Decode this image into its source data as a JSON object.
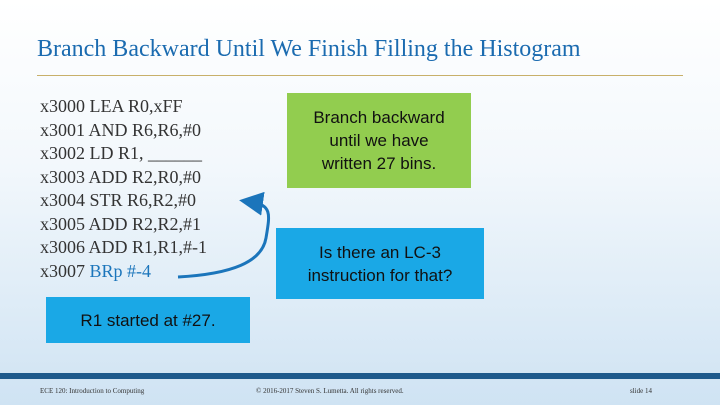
{
  "title": "Branch Backward Until We Finish Filling the Histogram",
  "code_lines": [
    {
      "addr": "x3000",
      "instr": "LEA R0,xFF",
      "highlight": ""
    },
    {
      "addr": "x3001",
      "instr": "AND R6,R6,#0",
      "highlight": ""
    },
    {
      "addr": "x3002",
      "instr": "LD R1, ______",
      "highlight": ""
    },
    {
      "addr": "x3003",
      "instr": "ADD R2,R0,#0",
      "highlight": ""
    },
    {
      "addr": "x3004",
      "instr": "STR R6,R2,#0",
      "highlight": ""
    },
    {
      "addr": "x3005",
      "instr": "ADD R2,R2,#1",
      "highlight": ""
    },
    {
      "addr": "x3006",
      "instr": "ADD R1,R1,#-1",
      "highlight": ""
    },
    {
      "addr": "x3007",
      "instr": "",
      "highlight": "BRp #-4"
    }
  ],
  "callouts": {
    "green": "Branch backward\nuntil we have\nwritten 27 bins.",
    "blue_question": "Is there an LC-3\ninstruction for that?",
    "blue_note": "R1 started at #27."
  },
  "footer": {
    "left": "ECE 120: Introduction to Computing",
    "center": "© 2016-2017 Steven S. Lumetta.  All rights reserved.",
    "right": "slide 14"
  },
  "colors": {
    "title": "#1b6bb0",
    "green_box": "#92cd4f",
    "blue_box": "#1aa8e6",
    "arrow": "#1b75bb",
    "footer_bar": "#1f5a8c"
  }
}
